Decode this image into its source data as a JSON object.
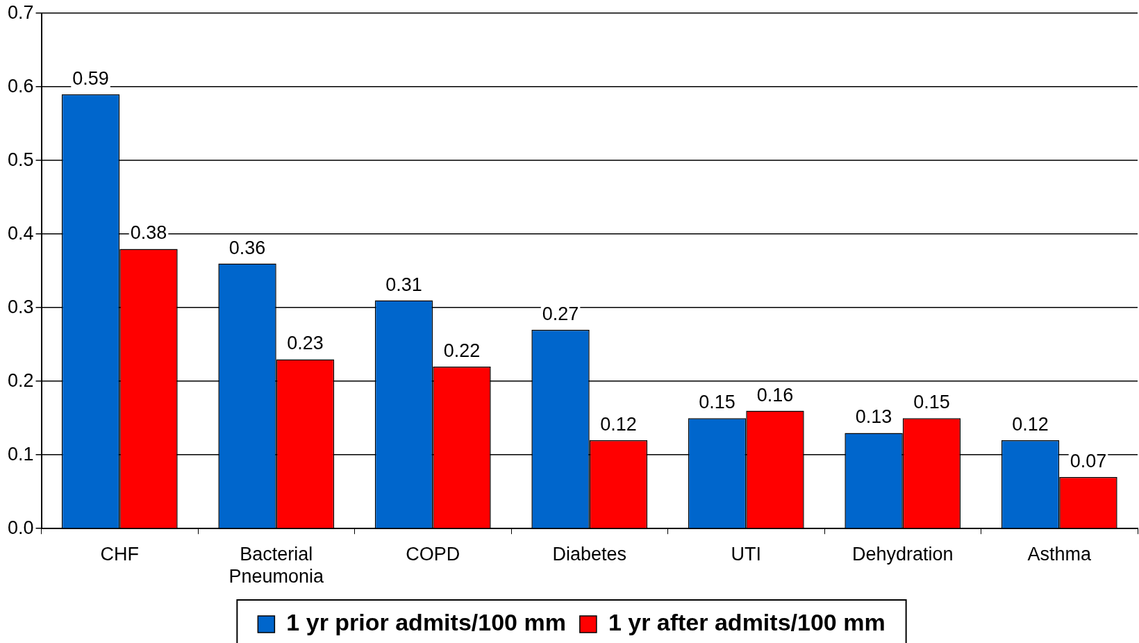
{
  "chart_data": {
    "type": "bar",
    "categories": [
      "CHF",
      [
        "Bacterial",
        "Pneumonia"
      ],
      "COPD",
      "Diabetes",
      "UTI",
      "Dehydration",
      "Asthma"
    ],
    "series": [
      {
        "name": "1 yr prior admits/100 mm",
        "color": "#0066cc",
        "values": [
          0.59,
          0.36,
          0.31,
          0.27,
          0.15,
          0.13,
          0.12
        ]
      },
      {
        "name": "1 yr after admits/100 mm",
        "color": "#ff0000",
        "values": [
          0.38,
          0.23,
          0.22,
          0.12,
          0.16,
          0.15,
          0.07
        ]
      }
    ],
    "ylim": [
      0,
      0.7
    ],
    "yticks": [
      {
        "value": 0,
        "label": "0.0"
      },
      0.1,
      0.2,
      0.3,
      0.4,
      0.5,
      0.6,
      0.7
    ],
    "grid": "y",
    "legend": "bottom",
    "data_labels": true
  }
}
